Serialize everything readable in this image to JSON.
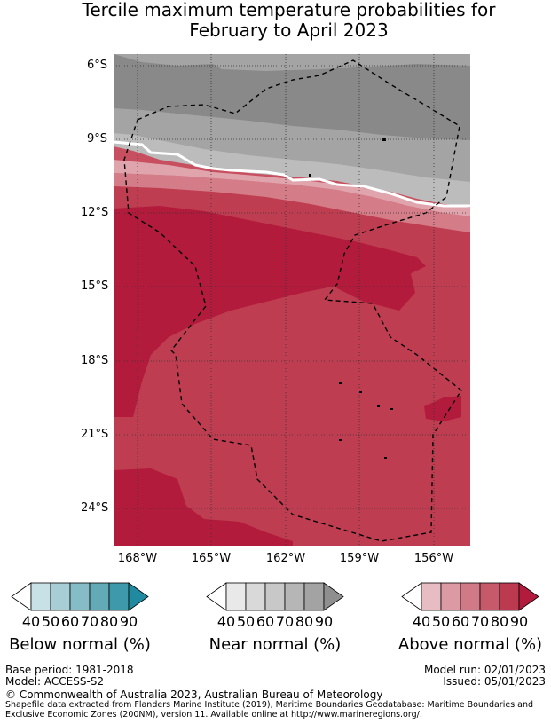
{
  "title": {
    "line1": "Tercile maximum temperature probabilities for",
    "line2": "February to April 2023"
  },
  "map": {
    "lat_labels": [
      "6°S",
      "9°S",
      "12°S",
      "15°S",
      "18°S",
      "21°S",
      "24°S"
    ],
    "lon_labels": [
      "168°W",
      "165°W",
      "162°W",
      "159°W",
      "156°W"
    ],
    "colors": {
      "near_70": "#bcbcbc",
      "near_80": "#a4a4a4",
      "near_90": "#898989",
      "above_50": "#dfa4ac",
      "above_60": "#d47c87",
      "above_70": "#c84f5f",
      "above_80": "#bf3d50",
      "above_90": "#b31b3d"
    }
  },
  "legends": [
    {
      "id": "below",
      "label": "Below normal (%)",
      "ticks": [
        "40",
        "50",
        "60",
        "70",
        "80",
        "90"
      ],
      "colors": [
        "#c8e1e6",
        "#a7ced5",
        "#86bcc6",
        "#63aab7",
        "#3e9aab",
        "#1f8aa0"
      ]
    },
    {
      "id": "near",
      "label": "Near normal (%)",
      "ticks": [
        "40",
        "50",
        "60",
        "70",
        "80",
        "90"
      ],
      "colors": [
        "#e9e9e9",
        "#d9d9d9",
        "#c8c8c8",
        "#b6b6b6",
        "#a3a3a3",
        "#8f8f8f"
      ]
    },
    {
      "id": "above",
      "label": "Above normal (%)",
      "ticks": [
        "40",
        "50",
        "60",
        "70",
        "80",
        "90"
      ],
      "colors": [
        "#e8bcc3",
        "#dc9aa4",
        "#d07a87",
        "#c65a6a",
        "#bb3a50",
        "#b31b3d"
      ]
    }
  ],
  "footer": {
    "base_period": "Base period: 1981-2018",
    "model": "Model: ACCESS-S2",
    "model_run": "Model run: 02/01/2023",
    "issued": "Issued: 05/01/2023",
    "copyright": "© Commonwealth of Australia 2023, Australian Bureau of Meteorology",
    "shapefile_line1": "Shapefile data extracted from Flanders Marine Institute (2019), Maritime Boundaries Geodatabase: Maritime Boundaries and",
    "shapefile_line2": "Exclusive Economic Zones (200NM), version 11. Available online at http://www.marineregions.org/."
  }
}
